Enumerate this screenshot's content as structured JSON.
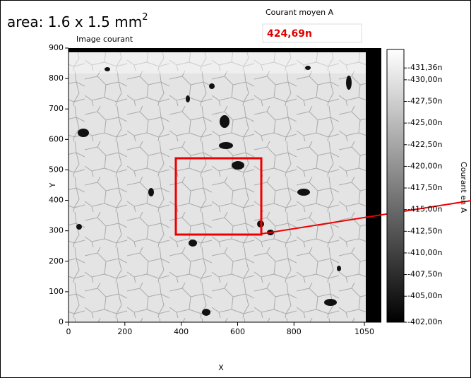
{
  "annotation": {
    "text": "area: 1.6 x 1.5 mm",
    "superscript": "2"
  },
  "indicator": {
    "label": "Courant moyen A",
    "value": "424,69n"
  },
  "graph": {
    "title": "Image courant",
    "xlabel": "X",
    "ylabel": "Y",
    "xlim": [
      0,
      1110
    ],
    "xticks": [
      0,
      200,
      400,
      600,
      800,
      1050
    ],
    "ylim": [
      0,
      900
    ],
    "yticks": [
      0,
      100,
      200,
      300,
      400,
      500,
      600,
      700,
      800,
      900
    ],
    "colorbar": {
      "label": "Courant en A",
      "lim": [
        -433.5,
        -402
      ],
      "ticks": [
        {
          "value": -431.36,
          "label": "-431,36n"
        },
        {
          "value": -430,
          "label": "-430,00n"
        },
        {
          "value": -427.5,
          "label": "-427,50n"
        },
        {
          "value": -425,
          "label": "-425,00n"
        },
        {
          "value": -422.5,
          "label": "-422,50n"
        },
        {
          "value": -420,
          "label": "-420,00n"
        },
        {
          "value": -417.5,
          "label": "-417,50n"
        },
        {
          "value": -415,
          "label": "-415,00n"
        },
        {
          "value": -412.5,
          "label": "-412,50n"
        },
        {
          "value": -410,
          "label": "-410,00n"
        },
        {
          "value": -407.5,
          "label": "-407,50n"
        },
        {
          "value": -405,
          "label": "-405,00n"
        },
        {
          "value": -402,
          "label": "-402,00n"
        }
      ]
    }
  }
}
